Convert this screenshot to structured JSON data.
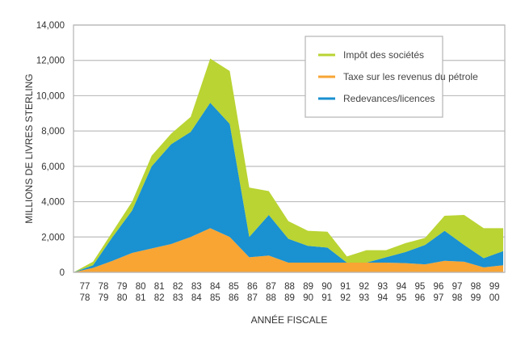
{
  "chart_data": {
    "type": "area",
    "stacked": true,
    "title": "",
    "xlabel": "ANNÉE FISCALE",
    "ylabel": "MILLIONS DE LIVRES STERLING",
    "ylim": [
      0,
      14000
    ],
    "yticks": [
      0,
      2000,
      4000,
      6000,
      8000,
      10000,
      12000,
      14000
    ],
    "ytick_labels": [
      "0",
      "2,000",
      "4,000",
      "6,000",
      "8,000",
      "10,000",
      "12,000",
      "14,000"
    ],
    "grid": true,
    "legend_position": "top-right",
    "categories": [
      [
        "77",
        "78"
      ],
      [
        "78",
        "79"
      ],
      [
        "79",
        "80"
      ],
      [
        "80",
        "81"
      ],
      [
        "81",
        "82"
      ],
      [
        "82",
        "83"
      ],
      [
        "83",
        "84"
      ],
      [
        "84",
        "85"
      ],
      [
        "85",
        "86"
      ],
      [
        "86",
        "87"
      ],
      [
        "87",
        "88"
      ],
      [
        "88",
        "89"
      ],
      [
        "89",
        "90"
      ],
      [
        "90",
        "91"
      ],
      [
        "91",
        "92"
      ],
      [
        "92",
        "93"
      ],
      [
        "93",
        "94"
      ],
      [
        "94",
        "95"
      ],
      [
        "95",
        "96"
      ],
      [
        "96",
        "97"
      ],
      [
        "97",
        "98"
      ],
      [
        "98",
        "99"
      ],
      [
        "99",
        "00"
      ]
    ],
    "series": [
      {
        "name": "Taxe sur les revenus du pétrole",
        "color": "#f8a534",
        "values": [
          0,
          250,
          650,
          1100,
          1350,
          1600,
          2000,
          2500,
          2000,
          850,
          950,
          550,
          550,
          550,
          550,
          550,
          550,
          520,
          450,
          650,
          600,
          280,
          400
        ]
      },
      {
        "name": "Redevances/licences",
        "color": "#1a91d0",
        "values": [
          0,
          150,
          1350,
          2400,
          4650,
          5650,
          5950,
          7100,
          6400,
          1150,
          2300,
          1350,
          950,
          850,
          0,
          0,
          300,
          630,
          1100,
          1700,
          950,
          520,
          800
        ]
      },
      {
        "name": "Impôt des sociétés",
        "color": "#b9d433",
        "values": [
          0,
          200,
          300,
          500,
          600,
          600,
          850,
          2500,
          3000,
          2800,
          1350,
          1000,
          850,
          900,
          350,
          700,
          400,
          500,
          400,
          850,
          1700,
          1700,
          1300
        ]
      }
    ],
    "legend_order": [
      "Impôt des sociétés",
      "Taxe sur les revenus du pétrole",
      "Redevances/licences"
    ]
  }
}
